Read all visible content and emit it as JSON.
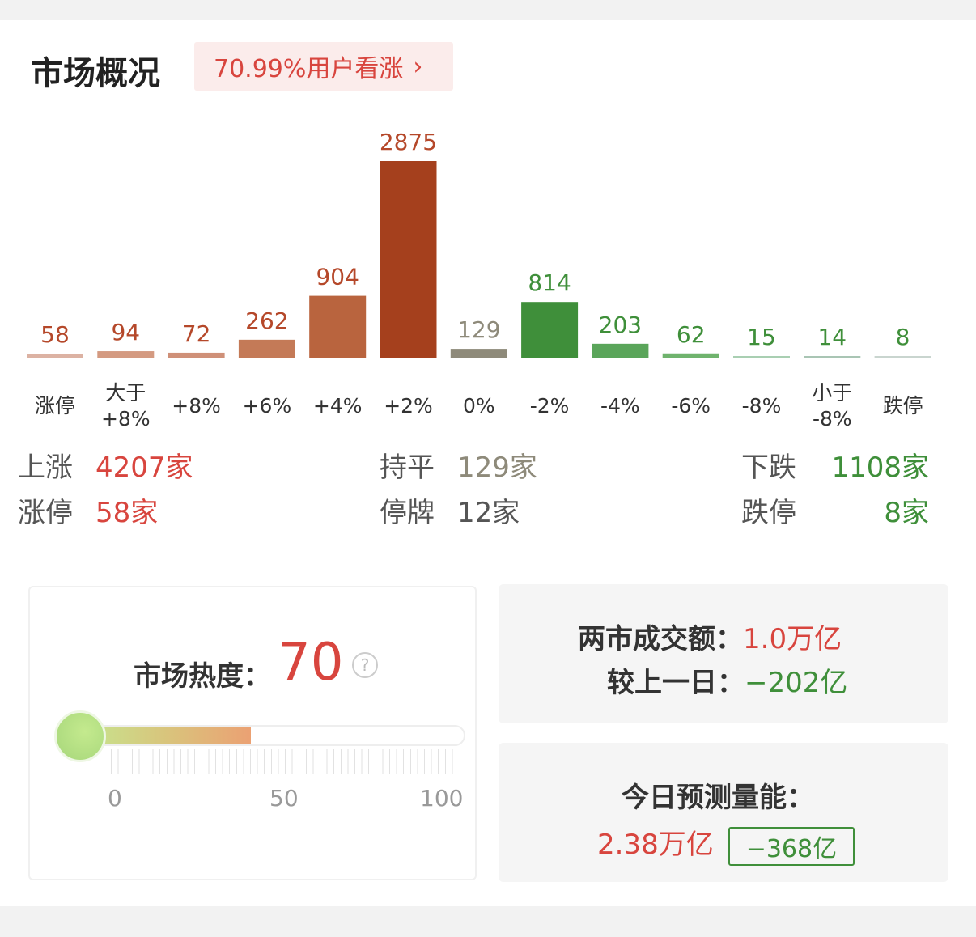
{
  "header": {
    "title": "市场概况",
    "sentiment_badge": "70.99%用户看涨",
    "chevron": "›"
  },
  "chart_data": {
    "type": "bar",
    "categories": [
      "涨停",
      "大于+8%",
      "+8%",
      "+6%",
      "+4%",
      "+2%",
      "0%",
      "-2%",
      "-4%",
      "-6%",
      "-8%",
      "小于-8%",
      "跌停"
    ],
    "category_lines": [
      [
        "涨停"
      ],
      [
        "大于",
        "+8%"
      ],
      [
        "+8%"
      ],
      [
        "+6%"
      ],
      [
        "+4%"
      ],
      [
        "+2%"
      ],
      [
        "0%"
      ],
      [
        "-2%"
      ],
      [
        "-4%"
      ],
      [
        "-6%"
      ],
      [
        "-8%"
      ],
      [
        "小于",
        "-8%"
      ],
      [
        "跌停"
      ]
    ],
    "values": [
      58,
      94,
      72,
      262,
      904,
      2875,
      129,
      814,
      203,
      62,
      15,
      14,
      8
    ],
    "colors": [
      "#dcb2a3",
      "#d49a81",
      "#cf9078",
      "#c47a57",
      "#b9643e",
      "#a5401d",
      "#8e8a7a",
      "#3f8f3a",
      "#5aa55a",
      "#6fb36d",
      "#a9cfb2",
      "#a9c5b4",
      "#c9d5cf"
    ],
    "label_colors": [
      "#b5482a",
      "#b5482a",
      "#b5482a",
      "#b5482a",
      "#b5482a",
      "#b5482a",
      "#8e8a7a",
      "#3f8f3a",
      "#3f8f3a",
      "#3f8f3a",
      "#3f8f3a",
      "#3f8f3a",
      "#3f8f3a"
    ]
  },
  "stats": {
    "up_label": "上涨",
    "up_value": "4207家",
    "limit_up_label": "涨停",
    "limit_up_value": "58家",
    "flat_label": "持平",
    "flat_value": "129家",
    "suspended_label": "停牌",
    "suspended_value": "12家",
    "down_label": "下跌",
    "down_value": "1108家",
    "limit_down_label": "跌停",
    "limit_down_value": "8家"
  },
  "heat": {
    "label": "市场热度：",
    "value": "70",
    "level": 70,
    "help": "?",
    "scale": [
      "0",
      "50",
      "100"
    ]
  },
  "volume": {
    "label": "两市成交额：",
    "value": "1.0万亿",
    "compare_label": "较上一日：",
    "compare_value": "−202亿"
  },
  "prediction": {
    "label": "今日预测量能：",
    "value": "2.38万亿",
    "change": "−368亿"
  },
  "colors": {
    "red": "#d8453e",
    "green": "#3f8f3a"
  }
}
